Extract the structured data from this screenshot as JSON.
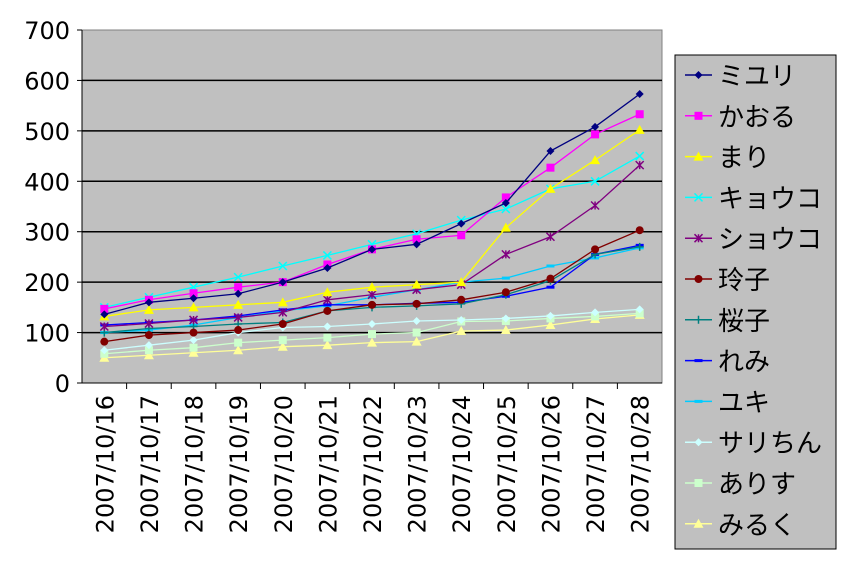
{
  "chart_data": {
    "type": "line",
    "title": "",
    "xlabel": "",
    "ylabel": "",
    "ylim": [
      0,
      700
    ],
    "yticks": [
      "0",
      "100",
      "200",
      "300",
      "400",
      "500",
      "600",
      "700"
    ],
    "grid": true,
    "legend_position": "right",
    "categories": [
      "2007/10/16",
      "2007/10/17",
      "2007/10/18",
      "2007/10/19",
      "2007/10/20",
      "2007/10/21",
      "2007/10/22",
      "2007/10/23",
      "2007/10/24",
      "2007/10/25",
      "2007/10/26",
      "2007/10/27",
      "2007/10/28"
    ],
    "series": [
      {
        "name": "ミユリ",
        "color": "#000080",
        "marker": "diamond",
        "values": [
          136,
          160,
          168,
          177,
          200,
          228,
          265,
          275,
          316,
          357,
          460,
          508,
          573
        ]
      },
      {
        "name": "かおる",
        "color": "#FF00FF",
        "marker": "square",
        "values": [
          147,
          165,
          178,
          190,
          200,
          235,
          265,
          285,
          293,
          368,
          427,
          493,
          533
        ]
      },
      {
        "name": "まり",
        "color": "#FFFF00",
        "marker": "triangle",
        "values": [
          132,
          145,
          150,
          155,
          160,
          180,
          190,
          195,
          200,
          308,
          385,
          442,
          502
        ]
      },
      {
        "name": "キョウコ",
        "color": "#00FFFF",
        "marker": "x",
        "values": [
          150,
          170,
          190,
          210,
          232,
          253,
          275,
          296,
          323,
          345,
          385,
          400,
          450
        ]
      },
      {
        "name": "ショウコ",
        "color": "#800080",
        "marker": "star",
        "values": [
          112,
          118,
          125,
          130,
          140,
          165,
          175,
          185,
          195,
          255,
          290,
          352,
          432
        ]
      },
      {
        "name": "玲子",
        "color": "#800000",
        "marker": "circle",
        "values": [
          82,
          95,
          100,
          105,
          117,
          143,
          155,
          157,
          165,
          180,
          207,
          265,
          303
        ]
      },
      {
        "name": "桜子",
        "color": "#008080",
        "marker": "plus",
        "values": [
          100,
          108,
          112,
          117,
          120,
          143,
          150,
          153,
          157,
          175,
          203,
          255,
          270
        ]
      },
      {
        "name": "れみ",
        "color": "#0000FF",
        "marker": "dash",
        "values": [
          115,
          120,
          125,
          133,
          145,
          155,
          155,
          158,
          160,
          172,
          190,
          255,
          273
        ]
      },
      {
        "name": "ユキ",
        "color": "#00CCFF",
        "marker": "dash",
        "values": [
          100,
          105,
          115,
          130,
          143,
          153,
          170,
          185,
          200,
          208,
          232,
          248,
          268
        ]
      },
      {
        "name": "サリちん",
        "color": "#CCFFFF",
        "marker": "diamond",
        "values": [
          65,
          75,
          85,
          100,
          110,
          112,
          117,
          123,
          125,
          128,
          133,
          140,
          146
        ]
      },
      {
        "name": "ありす",
        "color": "#CCFFCC",
        "marker": "square",
        "values": [
          58,
          65,
          70,
          80,
          85,
          90,
          97,
          100,
          122,
          123,
          128,
          132,
          138
        ]
      },
      {
        "name": "みるく",
        "color": "#FFFF99",
        "marker": "triangle",
        "values": [
          50,
          55,
          60,
          65,
          72,
          75,
          80,
          82,
          103,
          105,
          115,
          127,
          135
        ]
      }
    ]
  }
}
